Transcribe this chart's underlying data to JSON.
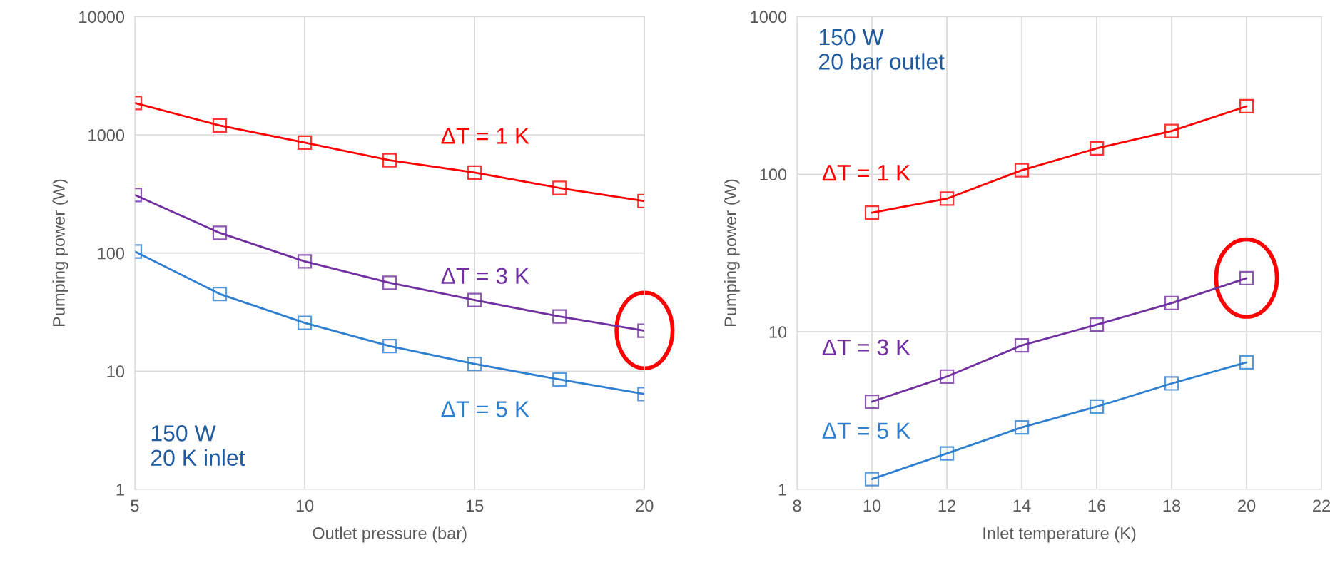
{
  "chart_data": [
    {
      "type": "line",
      "xlabel": "Outlet pressure (bar)",
      "ylabel": "Pumping power (W)",
      "log": "y",
      "grid": true,
      "marker": "square",
      "line_style": "solid",
      "x": [
        5,
        7.5,
        10,
        12.5,
        15,
        17.5,
        20
      ],
      "xlim": [
        5,
        20
      ],
      "xticks": [
        5,
        10,
        15,
        20
      ],
      "ylim": [
        1,
        10000
      ],
      "yticks": [
        1,
        10,
        100,
        1000,
        10000
      ],
      "series": [
        {
          "name": "ΔT = 1 K",
          "color": "#ff0000",
          "values": [
            1860,
            1200,
            860,
            610,
            480,
            355,
            275
          ]
        },
        {
          "name": "ΔT = 3 K",
          "color": "#7030a0",
          "values": [
            310,
            148,
            85,
            56,
            40,
            29,
            22
          ]
        },
        {
          "name": "ΔT = 5 K",
          "color": "#2e7fd0",
          "values": [
            103,
            45,
            25.6,
            16.3,
            11.5,
            8.5,
            6.4
          ]
        }
      ],
      "annotations": [
        "150 W\n20 K inlet"
      ]
    },
    {
      "type": "line",
      "xlabel": "Inlet temperature (K)",
      "ylabel": "Pumping power (W)",
      "log": "y",
      "grid": true,
      "marker": "square",
      "line_style": "solid",
      "x": [
        10,
        12,
        14,
        16,
        18,
        20
      ],
      "xlim": [
        8,
        22
      ],
      "xticks": [
        8,
        10,
        12,
        14,
        16,
        18,
        20,
        22
      ],
      "ylim": [
        1,
        1000
      ],
      "yticks": [
        1,
        10,
        100,
        1000
      ],
      "series": [
        {
          "name": "ΔT = 1 K",
          "color": "#ff0000",
          "values": [
            57,
            70,
            106,
            146,
            188,
            270
          ]
        },
        {
          "name": "ΔT = 3 K",
          "color": "#7030a0",
          "values": [
            3.6,
            5.2,
            8.2,
            11.1,
            15.2,
            21.9
          ]
        },
        {
          "name": "ΔT = 5 K",
          "color": "#2e7fd0",
          "values": [
            1.16,
            1.69,
            2.47,
            3.35,
            4.7,
            6.4
          ]
        }
      ],
      "annotations": [
        "150 W\n20 bar outlet"
      ]
    }
  ]
}
